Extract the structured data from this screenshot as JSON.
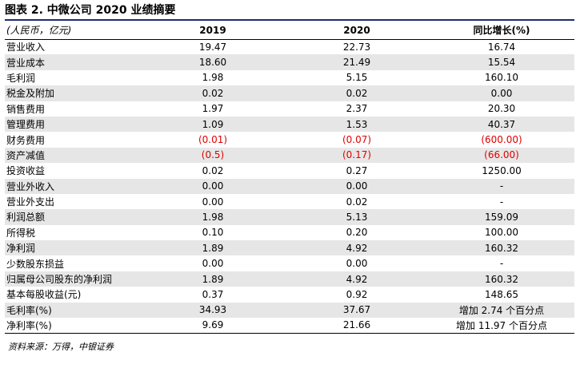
{
  "title": "图表 2. 中微公司 2020 业绩摘要",
  "table": {
    "headers": [
      "(人民币，亿元)",
      "2019",
      "2020",
      "同比增长(%)"
    ],
    "rows": [
      {
        "label": "营业收入",
        "y2019": "19.47",
        "y2020": "22.73",
        "growth": "16.74",
        "neg": false
      },
      {
        "label": "营业成本",
        "y2019": "18.60",
        "y2020": "21.49",
        "growth": "15.54",
        "neg": false
      },
      {
        "label": "毛利润",
        "y2019": "1.98",
        "y2020": "5.15",
        "growth": "160.10",
        "neg": false
      },
      {
        "label": "税金及附加",
        "y2019": "0.02",
        "y2020": "0.02",
        "growth": "0.00",
        "neg": false
      },
      {
        "label": "销售费用",
        "y2019": "1.97",
        "y2020": "2.37",
        "growth": "20.30",
        "neg": false
      },
      {
        "label": "管理费用",
        "y2019": "1.09",
        "y2020": "1.53",
        "growth": "40.37",
        "neg": false
      },
      {
        "label": "财务费用",
        "y2019": "(0.01)",
        "y2020": "(0.07)",
        "growth": "(600.00)",
        "neg": true
      },
      {
        "label": "资产减值",
        "y2019": "(0.5)",
        "y2020": "(0.17)",
        "growth": "(66.00)",
        "neg": true
      },
      {
        "label": "投资收益",
        "y2019": "0.02",
        "y2020": "0.27",
        "growth": "1250.00",
        "neg": false
      },
      {
        "label": "营业外收入",
        "y2019": "0.00",
        "y2020": "0.00",
        "growth": "-",
        "neg": false
      },
      {
        "label": "营业外支出",
        "y2019": "0.00",
        "y2020": "0.02",
        "growth": "-",
        "neg": false
      },
      {
        "label": "利润总额",
        "y2019": "1.98",
        "y2020": "5.13",
        "growth": "159.09",
        "neg": false
      },
      {
        "label": "所得税",
        "y2019": "0.10",
        "y2020": "0.20",
        "growth": "100.00",
        "neg": false
      },
      {
        "label": "净利润",
        "y2019": "1.89",
        "y2020": "4.92",
        "growth": "160.32",
        "neg": false
      },
      {
        "label": "少数股东损益",
        "y2019": "0.00",
        "y2020": "0.00",
        "growth": "-",
        "neg": false
      },
      {
        "label": "归属母公司股东的净利润",
        "y2019": "1.89",
        "y2020": "4.92",
        "growth": "160.32",
        "neg": false
      },
      {
        "label": "基本每股收益(元)",
        "y2019": "0.37",
        "y2020": "0.92",
        "growth": "148.65",
        "neg": false
      },
      {
        "label": "毛利率(%)",
        "y2019": "34.93",
        "y2020": "37.67",
        "growth": "增加 2.74 个百分点",
        "neg": false
      },
      {
        "label": "净利率(%)",
        "y2019": "9.69",
        "y2020": "21.66",
        "growth": "增加 11.97 个百分点",
        "neg": false
      }
    ]
  },
  "source": "资料来源：万得，中银证券",
  "colors": {
    "negative": "#e00000",
    "title_rule": "#1f2d6b",
    "stripe": "#e6e6e6"
  }
}
